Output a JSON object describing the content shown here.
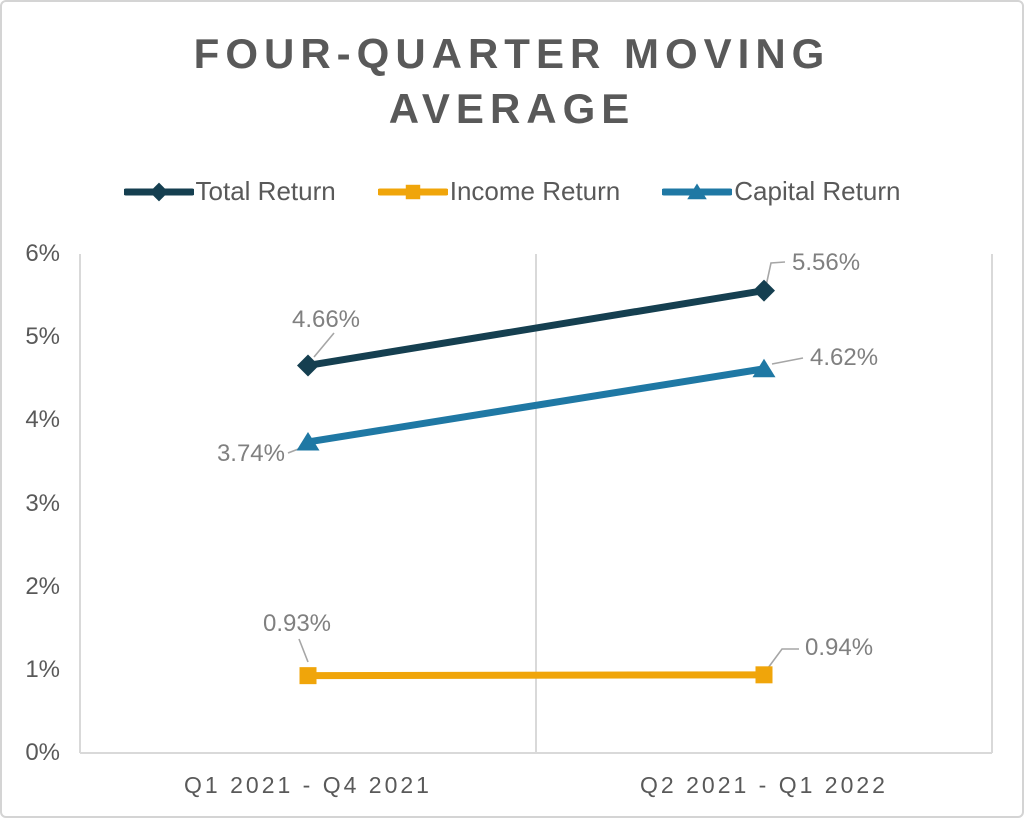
{
  "chart_data": {
    "type": "line",
    "title": "FOUR-QUARTER MOVING AVERAGE",
    "categories": [
      "Q1 2021 - Q4 2021",
      "Q2 2021 - Q1 2022"
    ],
    "series": [
      {
        "name": "Total Return",
        "marker": "diamond",
        "color": "#153F50",
        "values": [
          4.66,
          5.56
        ],
        "labels": [
          "4.66%",
          "5.56%"
        ]
      },
      {
        "name": "Income Return",
        "marker": "square",
        "color": "#F0A50A",
        "values": [
          0.93,
          0.94
        ],
        "labels": [
          "0.93%",
          "0.94%"
        ]
      },
      {
        "name": "Capital Return",
        "marker": "triangle",
        "color": "#1F78A4",
        "values": [
          3.74,
          4.62
        ],
        "labels": [
          "3.74%",
          "4.62%"
        ]
      }
    ],
    "yticks": [
      "0%",
      "1%",
      "2%",
      "3%",
      "4%",
      "5%",
      "6%"
    ],
    "ylim": [
      0,
      6
    ],
    "xlabel": "",
    "ylabel": "",
    "legend_position": "top",
    "grid": "vertical-category-boundaries-only",
    "colors": {
      "axis_line": "#D9D9D9",
      "leader_line": "#A6A6A6",
      "title_text": "#595959",
      "tick_text": "#595959",
      "data_label_text": "#808080"
    }
  }
}
